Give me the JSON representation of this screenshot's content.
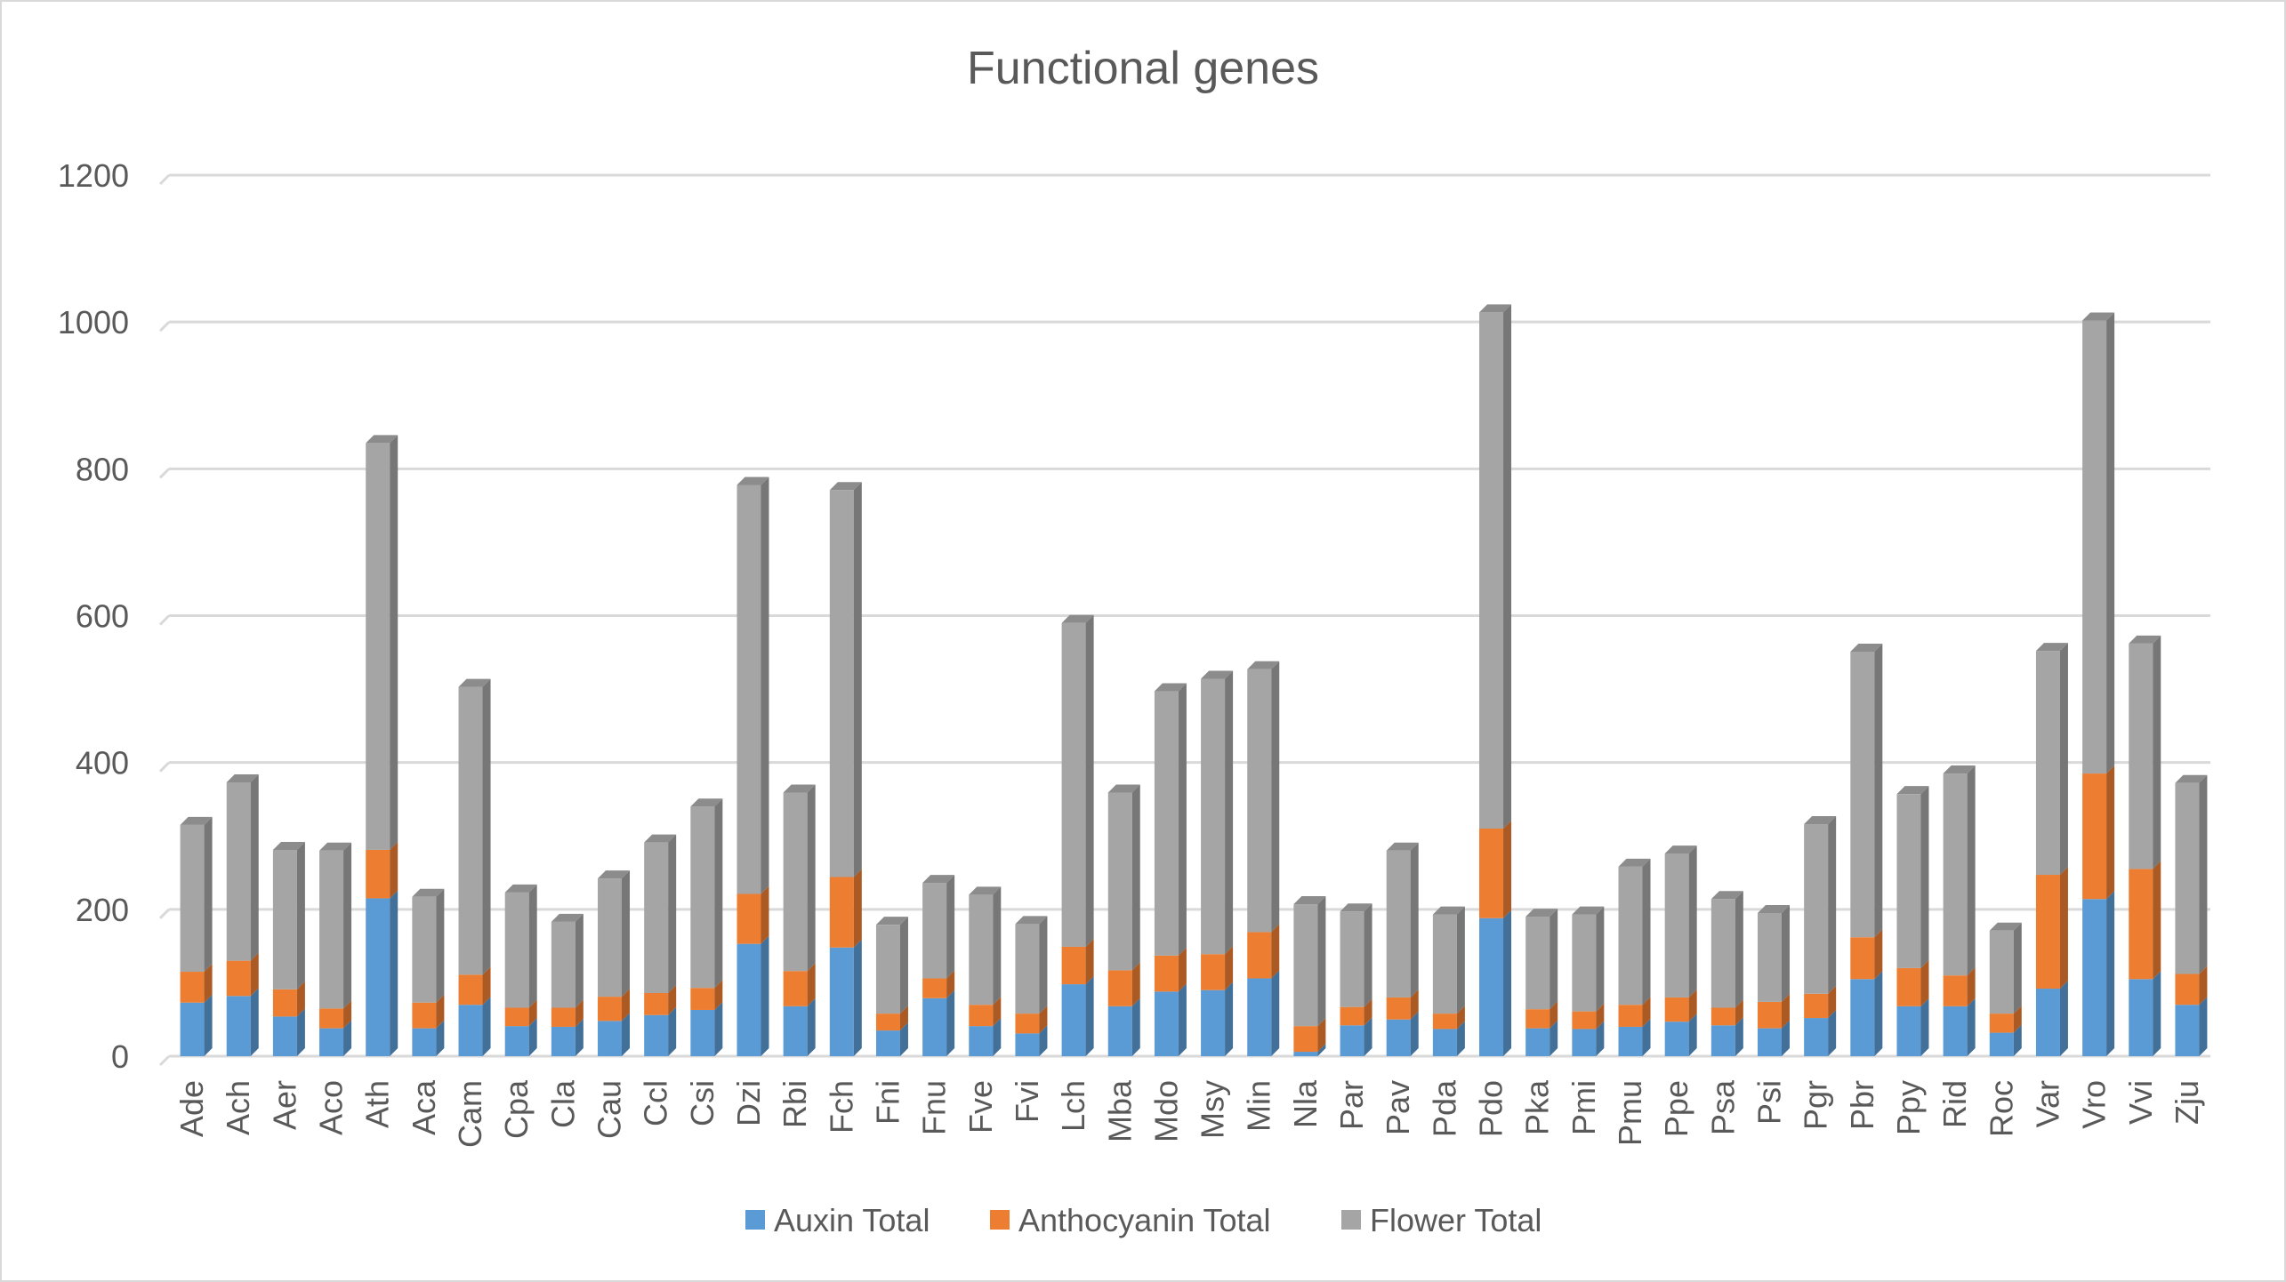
{
  "chart_data": {
    "type": "bar",
    "stacked": true,
    "title": "Functional genes",
    "xlabel": "",
    "ylabel": "",
    "ylim": [
      0,
      1200
    ],
    "yticks": [
      0,
      200,
      400,
      600,
      800,
      1000,
      1200
    ],
    "grid": true,
    "legend_position": "bottom",
    "categories": [
      "Ade",
      "Ach",
      "Aer",
      "Aco",
      "Ath",
      "Aca",
      "Cam",
      "Cpa",
      "Cla",
      "Cau",
      "Ccl",
      "Csi",
      "Dzi",
      "Rbi",
      "Fch",
      "Fni",
      "Fnu",
      "Fve",
      "Fvi",
      "Lch",
      "Mba",
      "Mdo",
      "Msy",
      "Min",
      "Nla",
      "Par",
      "Pav",
      "Pda",
      "Pdo",
      "Pka",
      "Pmi",
      "Pmu",
      "Ppe",
      "Psa",
      "Psi",
      "Pgr",
      "Pbr",
      "Ppy",
      "Rid",
      "Roc",
      "Var",
      "Vro",
      "Vvi",
      "Zju"
    ],
    "series": [
      {
        "name": "Auxin Total",
        "color": "#5B9BD5",
        "values": [
          73,
          82,
          54,
          38,
          215,
          38,
          70,
          41,
          40,
          48,
          56,
          63,
          153,
          68,
          148,
          35,
          79,
          41,
          31,
          98,
          68,
          88,
          90,
          106,
          6,
          42,
          50,
          37,
          188,
          38,
          37,
          40,
          47,
          42,
          38,
          52,
          105,
          68,
          68,
          32,
          92,
          214,
          105,
          70
        ]
      },
      {
        "name": "Anthocyanin Total",
        "color": "#ED7D31",
        "values": [
          42,
          48,
          37,
          27,
          66,
          35,
          41,
          25,
          26,
          33,
          30,
          30,
          68,
          48,
          96,
          23,
          27,
          29,
          27,
          51,
          49,
          49,
          49,
          63,
          35,
          25,
          30,
          21,
          122,
          26,
          24,
          30,
          33,
          24,
          36,
          33,
          57,
          52,
          42,
          26,
          155,
          171,
          150,
          42
        ]
      },
      {
        "name": "Flower Total",
        "color": "#A5A5A5",
        "values": [
          200,
          243,
          190,
          215,
          554,
          144,
          392,
          157,
          117,
          161,
          205,
          247,
          557,
          243,
          527,
          121,
          130,
          150,
          122,
          441,
          242,
          360,
          375,
          358,
          166,
          130,
          200,
          135,
          703,
          126,
          132,
          188,
          196,
          148,
          121,
          231,
          389,
          237,
          275,
          113,
          305,
          617,
          307,
          260
        ]
      }
    ]
  }
}
